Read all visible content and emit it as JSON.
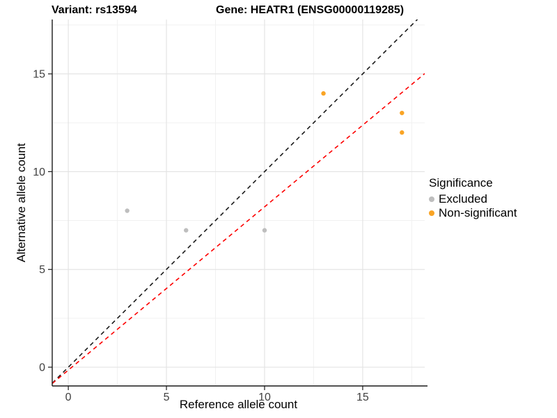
{
  "header": {
    "variant_title": "Variant: rs13594",
    "gene_title": "Gene: HEATR1 (ENSG00000119285)"
  },
  "axes": {
    "x_label": "Reference allele count",
    "y_label": "Alternative allele count"
  },
  "legend": {
    "title": "Significance",
    "items": [
      {
        "label": "Excluded",
        "color": "#BEBEBE"
      },
      {
        "label": "Non-significant",
        "color": "#F9A425"
      }
    ]
  },
  "chart_data": {
    "type": "scatter",
    "title": "Variant: rs13594 — Gene: HEATR1 (ENSG00000119285)",
    "xlabel": "Reference allele count",
    "ylabel": "Alternative allele count",
    "xlim": [
      -0.82,
      18.16
    ],
    "ylim": [
      -0.96,
      17.78
    ],
    "x_ticks": [
      0,
      5,
      10,
      15
    ],
    "y_ticks": [
      0,
      5,
      10,
      15
    ],
    "x_minor_ticks": [
      2.5,
      7.5,
      12.5,
      17.5
    ],
    "y_minor_ticks": [
      2.5,
      7.5,
      12.5,
      17.5
    ],
    "grid": true,
    "legend_position": "right",
    "series": [
      {
        "name": "Excluded",
        "color": "#BEBEBE",
        "points": [
          [
            3,
            8
          ],
          [
            6,
            7
          ],
          [
            10,
            7
          ]
        ]
      },
      {
        "name": "Non-significant",
        "color": "#F9A425",
        "points": [
          [
            13,
            14
          ],
          [
            17,
            13
          ],
          [
            17,
            12
          ]
        ]
      }
    ],
    "ablines": [
      {
        "name": "identity-line",
        "slope": 1.0,
        "intercept": 0.0,
        "color": "#1A1A1A",
        "style": "dashed"
      },
      {
        "name": "fitted-line",
        "slope": 0.835,
        "intercept": -0.15,
        "color": "#FD0000",
        "style": "dashed"
      }
    ],
    "style": {
      "major_grid_color": "#E4E4E4",
      "minor_grid_color": "#F1F1F1",
      "axis_line_color": "#1A1A1A",
      "tick_label_color": "#404040",
      "point_radius": 3.2
    }
  }
}
